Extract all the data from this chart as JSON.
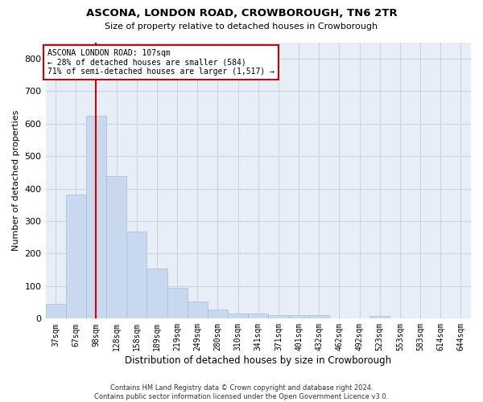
{
  "title": "ASCONA, LONDON ROAD, CROWBOROUGH, TN6 2TR",
  "subtitle": "Size of property relative to detached houses in Crowborough",
  "xlabel": "Distribution of detached houses by size in Crowborough",
  "ylabel": "Number of detached properties",
  "footer_line1": "Contains HM Land Registry data © Crown copyright and database right 2024.",
  "footer_line2": "Contains public sector information licensed under the Open Government Licence v3.0.",
  "bar_labels": [
    "37sqm",
    "67sqm",
    "98sqm",
    "128sqm",
    "158sqm",
    "189sqm",
    "219sqm",
    "249sqm",
    "280sqm",
    "310sqm",
    "341sqm",
    "371sqm",
    "401sqm",
    "432sqm",
    "462sqm",
    "492sqm",
    "523sqm",
    "553sqm",
    "583sqm",
    "614sqm",
    "644sqm"
  ],
  "bar_values": [
    45,
    382,
    625,
    438,
    268,
    155,
    95,
    52,
    28,
    15,
    15,
    10,
    10,
    10,
    0,
    0,
    8,
    0,
    0,
    0,
    0
  ],
  "bar_color": "#c8d8ee",
  "bar_edge_color": "#a8bcd8",
  "grid_color": "#ccd4e0",
  "bg_color": "#e8eef8",
  "annotation_line1": "ASCONA LONDON ROAD: 107sqm",
  "annotation_line2": "← 28% of detached houses are smaller (584)",
  "annotation_line3": "71% of semi-detached houses are larger (1,517) →",
  "vline_x_index": 2,
  "vline_color": "#cc0000",
  "annotation_box_color": "#ffffff",
  "annotation_box_edge": "#cc0000",
  "ylim": [
    0,
    850
  ],
  "yticks": [
    0,
    100,
    200,
    300,
    400,
    500,
    600,
    700,
    800
  ]
}
